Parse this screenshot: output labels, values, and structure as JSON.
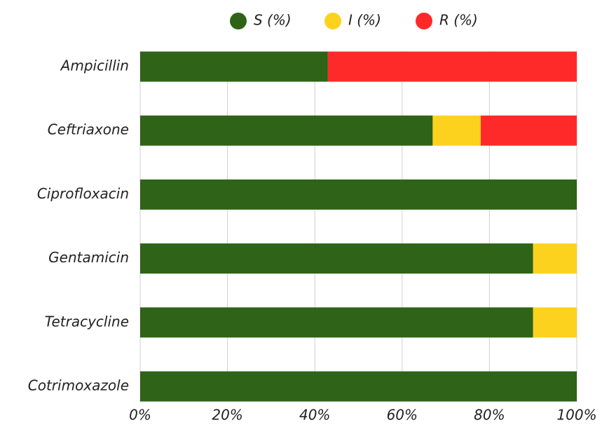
{
  "chart_data": {
    "type": "stacked_barh",
    "categories": [
      "Ampicillin",
      "Ceftriaxone",
      "Ciprofloxacin",
      "Gentamicin",
      "Tetracycline",
      "Cotrimoxazole"
    ],
    "series": [
      {
        "name": "S (%)",
        "color": "#2e6318",
        "values": [
          43,
          67,
          100,
          90,
          90,
          100
        ]
      },
      {
        "name": "I (%)",
        "color": "#fdd21f",
        "values": [
          0,
          11,
          0,
          10,
          10,
          0
        ]
      },
      {
        "name": "R (%)",
        "color": "#fe2a2a",
        "values": [
          57,
          22,
          0,
          0,
          0,
          0
        ]
      }
    ],
    "xlim": [
      0,
      100
    ],
    "xticks": [
      {
        "value": 0,
        "label": "0%"
      },
      {
        "value": 20,
        "label": "20%"
      },
      {
        "value": 40,
        "label": "40%"
      },
      {
        "value": 60,
        "label": "60%"
      },
      {
        "value": 80,
        "label": "80%"
      },
      {
        "value": 100,
        "label": "100%"
      }
    ],
    "grid": true,
    "legend": "top"
  }
}
